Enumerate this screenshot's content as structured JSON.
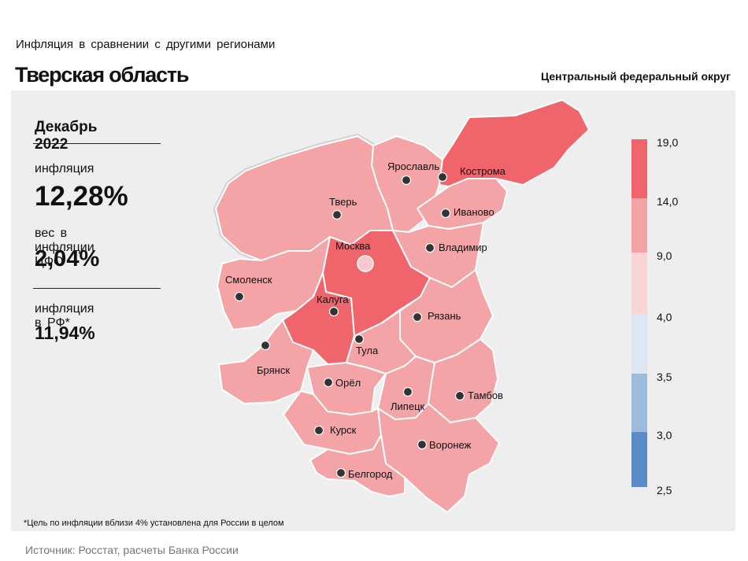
{
  "header": {
    "subtitle": "Инфляция в сравнении с другими регионами",
    "region": "Тверская область",
    "district": "Центральный федеральный округ"
  },
  "stats": {
    "period": "Декабрь 2022",
    "inflation_label": "инфляция",
    "inflation_value": "12,28%",
    "weight_label": "вес в инфляции ЦФО",
    "weight_value": "2,04%",
    "rf_label": "инфляция в РФ*",
    "rf_value": "11,94%"
  },
  "legend": {
    "ticks": [
      "19,0",
      "14,0",
      "9,0",
      "4,0",
      "3,5",
      "3,0",
      "2,5"
    ],
    "colors": [
      "#f0646c",
      "#f4a3a6",
      "#f9d5d6",
      "#dde6f3",
      "#9dbbdc",
      "#5b8cc9"
    ]
  },
  "cities": [
    {
      "name": "Ярославль",
      "color": "#f4a3a6"
    },
    {
      "name": "Кострома",
      "color": "#f0646c"
    },
    {
      "name": "Тверь",
      "color": "#f4a3a6"
    },
    {
      "name": "Иваново",
      "color": "#f4a3a6"
    },
    {
      "name": "Москва",
      "color": "#f0646c"
    },
    {
      "name": "Владимир",
      "color": "#f4a3a6"
    },
    {
      "name": "Смоленск",
      "color": "#f4a3a6"
    },
    {
      "name": "Калуга",
      "color": "#f0646c"
    },
    {
      "name": "Рязань",
      "color": "#f4a3a6"
    },
    {
      "name": "Тула",
      "color": "#f4a3a6"
    },
    {
      "name": "Брянск",
      "color": "#f4a3a6"
    },
    {
      "name": "Орёл",
      "color": "#f4a3a6"
    },
    {
      "name": "Липецк",
      "color": "#f4a3a6"
    },
    {
      "name": "Тамбов",
      "color": "#f4a3a6"
    },
    {
      "name": "Курск",
      "color": "#f4a3a6"
    },
    {
      "name": "Воронеж",
      "color": "#f4a3a6"
    },
    {
      "name": "Белгород",
      "color": "#f4a3a6"
    }
  ],
  "footnote": "*Цель по инфляции вблизи 4% установлена для России в целом",
  "source": "Источник: Росстат, расчеты Банка России"
}
